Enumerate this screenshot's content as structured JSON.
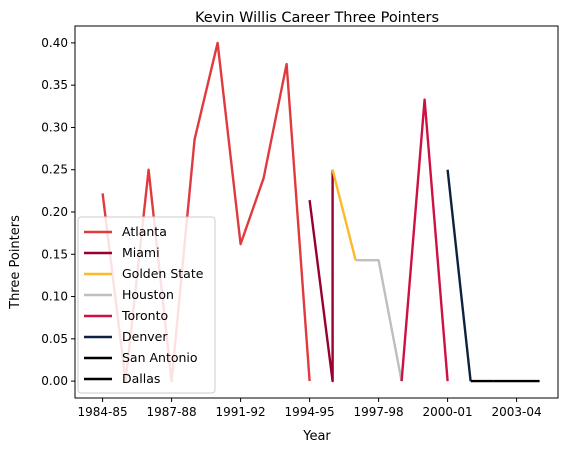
{
  "chart_data": {
    "type": "line",
    "title": "Kevin Willis Career Three Pointers",
    "xlabel": "Year",
    "ylabel": "Three Pointers",
    "x_ticks": [
      "1984-85",
      "1987-88",
      "1991-92",
      "1994-95",
      "1997-98",
      "2000-01",
      "2003-04"
    ],
    "x_tick_positions": [
      0,
      3,
      6,
      9,
      12,
      15,
      18
    ],
    "xlim": [
      -1.2,
      19.8
    ],
    "ylim": [
      -0.02,
      0.42
    ],
    "y_ticks": [
      0.0,
      0.05,
      0.1,
      0.15,
      0.2,
      0.25,
      0.3,
      0.35,
      0.4
    ],
    "y_tick_labels": [
      "0.00",
      "0.05",
      "0.10",
      "0.15",
      "0.20",
      "0.25",
      "0.30",
      "0.35",
      "0.40"
    ],
    "grid": false,
    "legend_position": "lower-left",
    "series": [
      {
        "name": "Atlanta",
        "color": "#e03a3e",
        "x": [
          0,
          1,
          2,
          3,
          4,
          5,
          6,
          7,
          8,
          9
        ],
        "y": [
          0.222,
          0.0,
          0.25,
          0.0,
          0.286,
          0.4,
          0.162,
          0.24,
          0.375,
          0.0
        ]
      },
      {
        "name": "Miami",
        "color": "#98002e",
        "x": [
          9,
          10,
          10
        ],
        "y": [
          0.214,
          0.0,
          0.25
        ]
      },
      {
        "name": "Golden State",
        "color": "#fdb927",
        "x": [
          10,
          11
        ],
        "y": [
          0.25,
          0.143
        ]
      },
      {
        "name": "Houston",
        "color": "#bfbfbf",
        "x": [
          11,
          12,
          13
        ],
        "y": [
          0.143,
          0.143,
          0.0
        ]
      },
      {
        "name": "Toronto",
        "color": "#ce1141",
        "x": [
          13,
          14,
          15
        ],
        "y": [
          0.0,
          0.333,
          0.0
        ]
      },
      {
        "name": "Denver",
        "color": "#0e2240",
        "x": [
          15,
          16
        ],
        "y": [
          0.25,
          0.0
        ]
      },
      {
        "name": "San Antonio",
        "color": "#000000",
        "x": [
          16,
          17
        ],
        "y": [
          0.0,
          0.0
        ]
      },
      {
        "name": "Dallas",
        "color": "#000000",
        "x": [
          17,
          19
        ],
        "y": [
          0.0,
          0.0
        ]
      }
    ]
  }
}
